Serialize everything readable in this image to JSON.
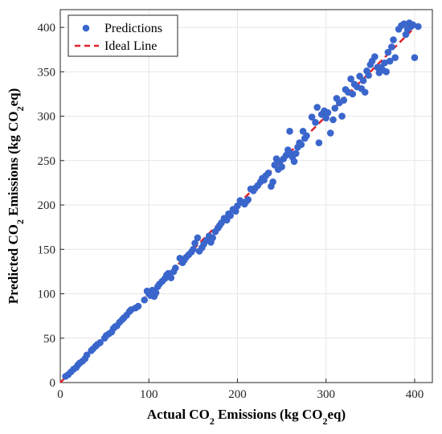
{
  "chart_data": {
    "type": "scatter",
    "xlabel_parts": [
      "Actual CO",
      "2",
      " Emissions (kg CO",
      "2",
      "eq)"
    ],
    "ylabel_parts": [
      "Predicted CO",
      "2",
      " Emissions (kg CO",
      "2",
      "eq)"
    ],
    "xlim": [
      0,
      420
    ],
    "ylim": [
      0,
      420
    ],
    "x_ticks": [
      0,
      100,
      200,
      300,
      400
    ],
    "y_ticks": [
      0,
      50,
      100,
      150,
      200,
      250,
      300,
      350,
      400
    ],
    "grid": true,
    "legend_position": "top-left",
    "colors": {
      "predictions": "#3A66CC",
      "ideal_line": "#E0222A"
    },
    "series": [
      {
        "name": "Predictions",
        "points": [
          [
            6,
            7
          ],
          [
            9,
            9
          ],
          [
            12,
            12
          ],
          [
            15,
            15
          ],
          [
            18,
            17
          ],
          [
            20,
            20
          ],
          [
            22,
            22
          ],
          [
            25,
            24
          ],
          [
            28,
            27
          ],
          [
            30,
            31
          ],
          [
            35,
            36
          ],
          [
            37,
            38
          ],
          [
            40,
            41
          ],
          [
            42,
            43
          ],
          [
            45,
            45
          ],
          [
            50,
            50
          ],
          [
            52,
            53
          ],
          [
            55,
            55
          ],
          [
            58,
            57
          ],
          [
            60,
            61
          ],
          [
            62,
            63
          ],
          [
            64,
            64
          ],
          [
            67,
            68
          ],
          [
            70,
            71
          ],
          [
            72,
            73
          ],
          [
            75,
            76
          ],
          [
            78,
            80
          ],
          [
            80,
            82
          ],
          [
            85,
            84
          ],
          [
            88,
            86
          ],
          [
            95,
            93
          ],
          [
            98,
            103
          ],
          [
            100,
            100
          ],
          [
            102,
            98
          ],
          [
            104,
            104
          ],
          [
            106,
            97
          ],
          [
            108,
            101
          ],
          [
            110,
            108
          ],
          [
            112,
            111
          ],
          [
            115,
            114
          ],
          [
            118,
            117
          ],
          [
            120,
            121
          ],
          [
            122,
            123
          ],
          [
            125,
            118
          ],
          [
            128,
            125
          ],
          [
            130,
            129
          ],
          [
            135,
            140
          ],
          [
            138,
            135
          ],
          [
            140,
            138
          ],
          [
            142,
            141
          ],
          [
            145,
            144
          ],
          [
            148,
            147
          ],
          [
            150,
            150
          ],
          [
            152,
            157
          ],
          [
            155,
            163
          ],
          [
            157,
            148
          ],
          [
            160,
            152
          ],
          [
            162,
            156
          ],
          [
            165,
            160
          ],
          [
            168,
            165
          ],
          [
            170,
            158
          ],
          [
            172,
            163
          ],
          [
            175,
            170
          ],
          [
            178,
            174
          ],
          [
            180,
            177
          ],
          [
            182,
            180
          ],
          [
            185,
            185
          ],
          [
            188,
            183
          ],
          [
            190,
            190
          ],
          [
            192,
            188
          ],
          [
            195,
            195
          ],
          [
            198,
            193
          ],
          [
            200,
            199
          ],
          [
            203,
            205
          ],
          [
            205,
            203
          ],
          [
            208,
            201
          ],
          [
            210,
            204
          ],
          [
            212,
            206
          ],
          [
            215,
            218
          ],
          [
            218,
            216
          ],
          [
            220,
            219
          ],
          [
            223,
            222
          ],
          [
            226,
            226
          ],
          [
            228,
            230
          ],
          [
            230,
            228
          ],
          [
            232,
            233
          ],
          [
            235,
            236
          ],
          [
            238,
            221
          ],
          [
            240,
            226
          ],
          [
            242,
            245
          ],
          [
            244,
            252
          ],
          [
            246,
            240
          ],
          [
            248,
            249
          ],
          [
            250,
            243
          ],
          [
            252,
            252
          ],
          [
            255,
            256
          ],
          [
            257,
            262
          ],
          [
            259,
            283
          ],
          [
            260,
            258
          ],
          [
            262,
            254
          ],
          [
            264,
            249
          ],
          [
            266,
            258
          ],
          [
            268,
            265
          ],
          [
            270,
            270
          ],
          [
            272,
            268
          ],
          [
            274,
            283
          ],
          [
            276,
            275
          ],
          [
            278,
            278
          ],
          [
            284,
            299
          ],
          [
            288,
            293
          ],
          [
            290,
            310
          ],
          [
            292,
            270
          ],
          [
            295,
            302
          ],
          [
            298,
            306
          ],
          [
            300,
            298
          ],
          [
            302,
            304
          ],
          [
            305,
            281
          ],
          [
            308,
            296
          ],
          [
            310,
            309
          ],
          [
            312,
            320
          ],
          [
            315,
            315
          ],
          [
            318,
            300
          ],
          [
            320,
            318
          ],
          [
            322,
            330
          ],
          [
            325,
            327
          ],
          [
            328,
            342
          ],
          [
            330,
            325
          ],
          [
            332,
            336
          ],
          [
            335,
            333
          ],
          [
            338,
            345
          ],
          [
            340,
            331
          ],
          [
            342,
            340
          ],
          [
            344,
            327
          ],
          [
            346,
            351
          ],
          [
            348,
            346
          ],
          [
            350,
            358
          ],
          [
            352,
            362
          ],
          [
            355,
            367
          ],
          [
            358,
            355
          ],
          [
            360,
            349
          ],
          [
            362,
            355
          ],
          [
            364,
            352
          ],
          [
            366,
            360
          ],
          [
            368,
            350
          ],
          [
            370,
            372
          ],
          [
            372,
            362
          ],
          [
            374,
            378
          ],
          [
            376,
            386
          ],
          [
            378,
            366
          ],
          [
            382,
            398
          ],
          [
            385,
            402
          ],
          [
            388,
            404
          ],
          [
            390,
            392
          ],
          [
            392,
            398
          ],
          [
            394,
            405
          ],
          [
            396,
            401
          ],
          [
            398,
            403
          ],
          [
            400,
            366
          ],
          [
            404,
            401
          ]
        ]
      },
      {
        "name": "Ideal Line",
        "line": [
          [
            0,
            0
          ],
          [
            400,
            400
          ]
        ]
      }
    ]
  }
}
